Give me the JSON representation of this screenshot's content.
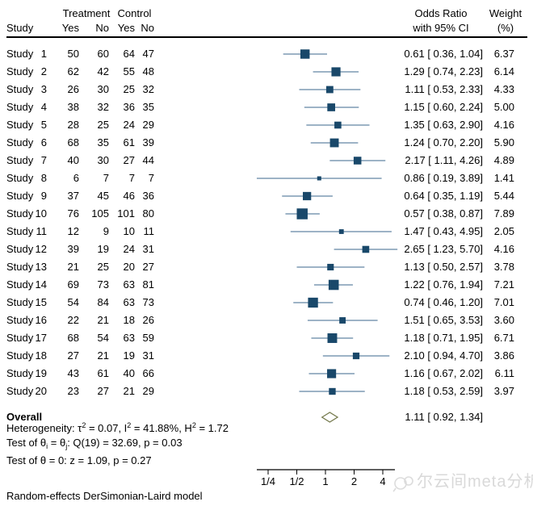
{
  "header": {
    "study": "Study",
    "treatment": "Treatment",
    "control": "Control",
    "yes": "Yes",
    "no": "No",
    "or_line1": "Odds Ratio",
    "or_line2": "with 95% CI",
    "weight_line1": "Weight",
    "weight_line2": "(%)"
  },
  "colors": {
    "marker": "#19486a",
    "ci_line": "#7d9ab3",
    "diamond": "#757a4d",
    "axis": "#000000",
    "watermark": "#d9d9d9"
  },
  "chart_data": {
    "type": "forest",
    "x_scale": "log2",
    "axis_ticks": [
      {
        "label": "1/4",
        "value": 0.25
      },
      {
        "label": "1/2",
        "value": 0.5
      },
      {
        "label": "1",
        "value": 1
      },
      {
        "label": "2",
        "value": 2
      },
      {
        "label": "4",
        "value": 4
      }
    ],
    "studies": [
      {
        "label": "Study 1",
        "t_yes": 50,
        "t_no": 60,
        "c_yes": 64,
        "c_no": 47,
        "or": 0.61,
        "lo": 0.36,
        "hi": 1.04,
        "weight": 6.37
      },
      {
        "label": "Study 2",
        "t_yes": 62,
        "t_no": 42,
        "c_yes": 55,
        "c_no": 48,
        "or": 1.29,
        "lo": 0.74,
        "hi": 2.23,
        "weight": 6.14
      },
      {
        "label": "Study 3",
        "t_yes": 26,
        "t_no": 30,
        "c_yes": 25,
        "c_no": 32,
        "or": 1.11,
        "lo": 0.53,
        "hi": 2.33,
        "weight": 4.33
      },
      {
        "label": "Study 4",
        "t_yes": 38,
        "t_no": 32,
        "c_yes": 36,
        "c_no": 35,
        "or": 1.15,
        "lo": 0.6,
        "hi": 2.24,
        "weight": 5.0
      },
      {
        "label": "Study 5",
        "t_yes": 28,
        "t_no": 25,
        "c_yes": 24,
        "c_no": 29,
        "or": 1.35,
        "lo": 0.63,
        "hi": 2.9,
        "weight": 4.16
      },
      {
        "label": "Study 6",
        "t_yes": 68,
        "t_no": 35,
        "c_yes": 61,
        "c_no": 39,
        "or": 1.24,
        "lo": 0.7,
        "hi": 2.2,
        "weight": 5.9
      },
      {
        "label": "Study 7",
        "t_yes": 40,
        "t_no": 30,
        "c_yes": 27,
        "c_no": 44,
        "or": 2.17,
        "lo": 1.11,
        "hi": 4.26,
        "weight": 4.89
      },
      {
        "label": "Study 8",
        "t_yes": 6,
        "t_no": 7,
        "c_yes": 7,
        "c_no": 7,
        "or": 0.86,
        "lo": 0.19,
        "hi": 3.89,
        "weight": 1.41
      },
      {
        "label": "Study 9",
        "t_yes": 37,
        "t_no": 45,
        "c_yes": 46,
        "c_no": 36,
        "or": 0.64,
        "lo": 0.35,
        "hi": 1.19,
        "weight": 5.44
      },
      {
        "label": "Study 10",
        "t_yes": 76,
        "t_no": 105,
        "c_yes": 101,
        "c_no": 80,
        "or": 0.57,
        "lo": 0.38,
        "hi": 0.87,
        "weight": 7.89
      },
      {
        "label": "Study 11",
        "t_yes": 12,
        "t_no": 9,
        "c_yes": 10,
        "c_no": 11,
        "or": 1.47,
        "lo": 0.43,
        "hi": 4.95,
        "weight": 2.05
      },
      {
        "label": "Study 12",
        "t_yes": 39,
        "t_no": 19,
        "c_yes": 24,
        "c_no": 31,
        "or": 2.65,
        "lo": 1.23,
        "hi": 5.7,
        "weight": 4.16
      },
      {
        "label": "Study 13",
        "t_yes": 21,
        "t_no": 25,
        "c_yes": 20,
        "c_no": 27,
        "or": 1.13,
        "lo": 0.5,
        "hi": 2.57,
        "weight": 3.78
      },
      {
        "label": "Study 14",
        "t_yes": 69,
        "t_no": 73,
        "c_yes": 63,
        "c_no": 81,
        "or": 1.22,
        "lo": 0.76,
        "hi": 1.94,
        "weight": 7.21
      },
      {
        "label": "Study 15",
        "t_yes": 54,
        "t_no": 84,
        "c_yes": 63,
        "c_no": 73,
        "or": 0.74,
        "lo": 0.46,
        "hi": 1.2,
        "weight": 7.01
      },
      {
        "label": "Study 16",
        "t_yes": 22,
        "t_no": 21,
        "c_yes": 18,
        "c_no": 26,
        "or": 1.51,
        "lo": 0.65,
        "hi": 3.53,
        "weight": 3.6
      },
      {
        "label": "Study 17",
        "t_yes": 68,
        "t_no": 54,
        "c_yes": 63,
        "c_no": 59,
        "or": 1.18,
        "lo": 0.71,
        "hi": 1.95,
        "weight": 6.71
      },
      {
        "label": "Study 18",
        "t_yes": 27,
        "t_no": 21,
        "c_yes": 19,
        "c_no": 31,
        "or": 2.1,
        "lo": 0.94,
        "hi": 4.7,
        "weight": 3.86
      },
      {
        "label": "Study 19",
        "t_yes": 43,
        "t_no": 61,
        "c_yes": 40,
        "c_no": 66,
        "or": 1.16,
        "lo": 0.67,
        "hi": 2.02,
        "weight": 6.11
      },
      {
        "label": "Study 20",
        "t_yes": 23,
        "t_no": 27,
        "c_yes": 21,
        "c_no": 29,
        "or": 1.18,
        "lo": 0.53,
        "hi": 2.59,
        "weight": 3.97
      }
    ],
    "overall": {
      "label": "Overall",
      "or": 1.11,
      "lo": 0.92,
      "hi": 1.34
    }
  },
  "stats": {
    "heterogeneity": [
      {
        "t": "Heterogeneity: τ"
      },
      {
        "t": "2",
        "s": "sup"
      },
      {
        "t": " = 0.07, I"
      },
      {
        "t": "2",
        "s": "sup"
      },
      {
        "t": " = 41.88%, H"
      },
      {
        "t": "2",
        "s": "sup"
      },
      {
        "t": " = 1.72"
      }
    ],
    "test_theta_ij": [
      {
        "t": "Test of θ"
      },
      {
        "t": "i",
        "s": "sub"
      },
      {
        "t": " = θ"
      },
      {
        "t": "j",
        "s": "sub"
      },
      {
        "t": ": Q(19) = 32.69, p = 0.03"
      }
    ],
    "test_theta_zero": [
      {
        "t": "Test of θ = 0: z = 1.09, p = 0.27"
      }
    ]
  },
  "footer": {
    "model": "Random-effects DerSimonian-Laird model"
  },
  "watermark": {
    "text": "尔云间meta分析"
  }
}
